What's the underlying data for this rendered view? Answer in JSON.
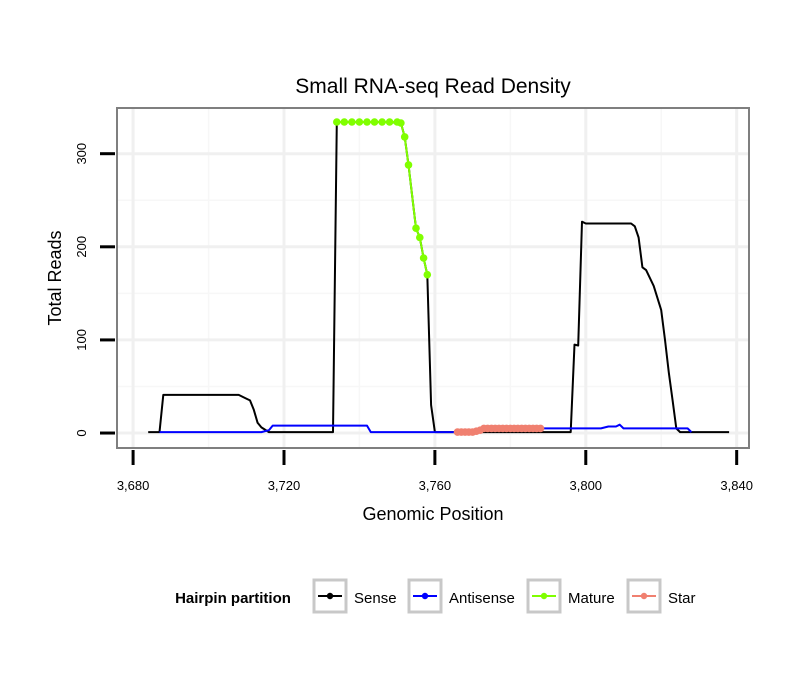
{
  "chart_data": {
    "type": "line",
    "title": "Small RNA-seq Read Density",
    "xlabel": "Genomic Position",
    "ylabel": "Total Reads",
    "xlim": [
      3676,
      3843
    ],
    "ylim": [
      -15,
      348
    ],
    "xticks": [
      3680,
      3720,
      3760,
      3800,
      3840
    ],
    "xtick_labels": [
      "3,680",
      "3,720",
      "3,760",
      "3,800",
      "3,840"
    ],
    "yticks": [
      0,
      100,
      200,
      300
    ],
    "ytick_labels": [
      "0",
      "100",
      "200",
      "300"
    ],
    "grid": true,
    "legend": {
      "title": "Hairpin partition",
      "position": "bottom",
      "entries": [
        "Sense",
        "Antisense",
        "Mature",
        "Star"
      ]
    },
    "series": [
      {
        "name": "Sense",
        "color": "#000000",
        "markers": false,
        "points": [
          [
            3684,
            1
          ],
          [
            3687,
            1
          ],
          [
            3688,
            41
          ],
          [
            3696,
            41
          ],
          [
            3708,
            41
          ],
          [
            3710,
            37
          ],
          [
            3711,
            35
          ],
          [
            3712,
            25
          ],
          [
            3713,
            11
          ],
          [
            3714,
            6
          ],
          [
            3716,
            1
          ],
          [
            3732,
            1
          ],
          [
            3733,
            1
          ],
          [
            3734,
            334
          ],
          [
            3748,
            334
          ],
          [
            3751,
            333
          ],
          [
            3752,
            318
          ],
          [
            3753,
            288
          ],
          [
            3755,
            220
          ],
          [
            3756,
            210
          ],
          [
            3757,
            188
          ],
          [
            3758,
            170
          ],
          [
            3759,
            30
          ],
          [
            3760,
            1
          ],
          [
            3796,
            1
          ],
          [
            3797,
            95
          ],
          [
            3798,
            94
          ],
          [
            3799,
            227
          ],
          [
            3800,
            225
          ],
          [
            3812,
            225
          ],
          [
            3813,
            222
          ],
          [
            3814,
            210
          ],
          [
            3815,
            178
          ],
          [
            3816,
            175
          ],
          [
            3818,
            158
          ],
          [
            3820,
            132
          ],
          [
            3821,
            100
          ],
          [
            3822,
            65
          ],
          [
            3823,
            35
          ],
          [
            3824,
            5
          ],
          [
            3825,
            1
          ],
          [
            3838,
            1
          ]
        ]
      },
      {
        "name": "Antisense",
        "color": "#0000ff",
        "markers": false,
        "points": [
          [
            3687,
            1
          ],
          [
            3714,
            1
          ],
          [
            3716,
            3
          ],
          [
            3717,
            8
          ],
          [
            3742,
            8
          ],
          [
            3743,
            1
          ],
          [
            3771,
            1
          ],
          [
            3773,
            5
          ],
          [
            3804,
            5
          ],
          [
            3806,
            7
          ],
          [
            3808,
            7
          ],
          [
            3809,
            9
          ],
          [
            3810,
            5
          ],
          [
            3827,
            5
          ],
          [
            3828,
            1
          ]
        ]
      },
      {
        "name": "Mature",
        "color": "#80ff00",
        "markers": true,
        "points": [
          [
            3734,
            334
          ],
          [
            3736,
            334
          ],
          [
            3738,
            334
          ],
          [
            3740,
            334
          ],
          [
            3742,
            334
          ],
          [
            3744,
            334
          ],
          [
            3746,
            334
          ],
          [
            3748,
            334
          ],
          [
            3750,
            334
          ],
          [
            3751,
            333
          ],
          [
            3752,
            318
          ],
          [
            3753,
            288
          ],
          [
            3755,
            220
          ],
          [
            3756,
            210
          ],
          [
            3757,
            188
          ],
          [
            3758,
            170
          ]
        ]
      },
      {
        "name": "Star",
        "color": "#f08070",
        "markers": true,
        "points": [
          [
            3766,
            1
          ],
          [
            3767,
            1
          ],
          [
            3768,
            1
          ],
          [
            3769,
            1
          ],
          [
            3770,
            1
          ],
          [
            3771,
            2
          ],
          [
            3772,
            3
          ],
          [
            3773,
            5
          ],
          [
            3774,
            5
          ],
          [
            3775,
            5
          ],
          [
            3776,
            5
          ],
          [
            3777,
            5
          ],
          [
            3778,
            5
          ],
          [
            3779,
            5
          ],
          [
            3780,
            5
          ],
          [
            3781,
            5
          ],
          [
            3782,
            5
          ],
          [
            3783,
            5
          ],
          [
            3784,
            5
          ],
          [
            3785,
            5
          ],
          [
            3786,
            5
          ],
          [
            3787,
            5
          ],
          [
            3788,
            5
          ]
        ]
      }
    ]
  }
}
